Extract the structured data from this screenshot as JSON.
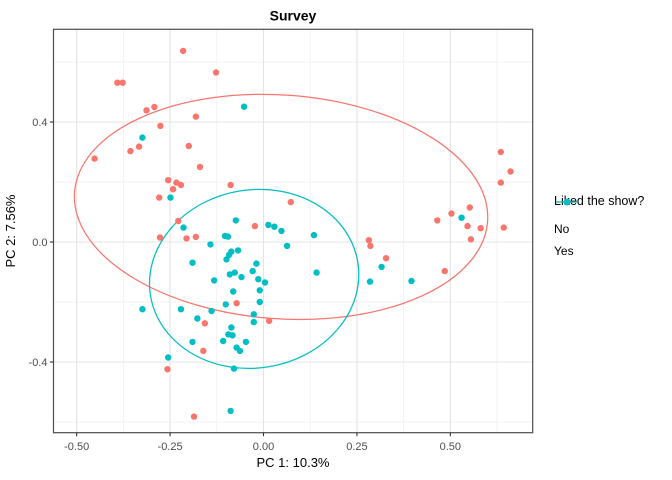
{
  "title": "Survey",
  "axes": {
    "x": {
      "label": "PC 1: 10.3%",
      "ticks": [
        {
          "value": -0.5,
          "label": "-0.50"
        },
        {
          "value": -0.25,
          "label": "-0.25"
        },
        {
          "value": 0.0,
          "label": "0.00"
        },
        {
          "value": 0.25,
          "label": "0.25"
        },
        {
          "value": 0.5,
          "label": "0.50"
        }
      ],
      "minor": [
        -0.375,
        -0.125,
        0.125,
        0.375,
        0.625
      ],
      "range": [
        -0.562,
        0.721
      ]
    },
    "y": {
      "label": "PC 2: 7.56%",
      "ticks": [
        {
          "value": 0.4,
          "label": "0.4"
        },
        {
          "value": 0.0,
          "label": "0.0"
        },
        {
          "value": -0.4,
          "label": "-0.4"
        }
      ],
      "minor": [
        -0.6,
        -0.2,
        0.2,
        0.6
      ],
      "range": [
        -0.634,
        0.711
      ]
    }
  },
  "legend": {
    "title": "Liked the show?",
    "entries": [
      {
        "label": "No",
        "color": "#F8766D"
      },
      {
        "label": "Yes",
        "color": "#00BFC4"
      }
    ]
  },
  "chart_data": {
    "type": "scatter",
    "xlabel": "PC 1: 10.3%",
    "ylabel": "PC 2: 7.56%",
    "title": "Survey",
    "grid": true,
    "legend_position": "right",
    "series": [
      {
        "name": "No",
        "color": "#F8766D",
        "points": [
          [
            -0.215,
            0.637
          ],
          [
            -0.391,
            0.531
          ],
          [
            -0.377,
            0.531
          ],
          [
            -0.313,
            0.439
          ],
          [
            -0.292,
            0.45
          ],
          [
            -0.276,
            0.387
          ],
          [
            -0.181,
            0.418
          ],
          [
            -0.333,
            0.318
          ],
          [
            -0.356,
            0.303
          ],
          [
            -0.452,
            0.278
          ],
          [
            -0.2,
            0.32
          ],
          [
            -0.127,
            0.565
          ],
          [
            0.635,
            0.3
          ],
          [
            -0.17,
            0.25
          ],
          [
            -0.255,
            0.206
          ],
          [
            -0.233,
            0.198
          ],
          [
            -0.221,
            0.19
          ],
          [
            -0.242,
            0.176
          ],
          [
            -0.279,
            0.148
          ],
          [
            -0.228,
            0.07
          ],
          [
            -0.277,
            0.015
          ],
          [
            -0.206,
            0.012
          ],
          [
            -0.181,
            0.017
          ],
          [
            -0.088,
            0.19
          ],
          [
            0.073,
            0.133
          ],
          [
            -0.023,
            0.053
          ],
          [
            0.282,
            0.006
          ],
          [
            0.286,
            -0.013
          ],
          [
            0.661,
            0.235
          ],
          [
            0.635,
            0.198
          ],
          [
            0.552,
            0.115
          ],
          [
            0.503,
            0.095
          ],
          [
            0.465,
            0.072
          ],
          [
            0.546,
            0.053
          ],
          [
            0.581,
            0.046
          ],
          [
            0.555,
            0.009
          ],
          [
            0.643,
            0.048
          ],
          [
            0.328,
            -0.054
          ],
          [
            0.485,
            -0.097
          ],
          [
            -0.157,
            -0.271
          ],
          [
            -0.161,
            -0.363
          ],
          [
            -0.257,
            -0.424
          ],
          [
            -0.186,
            -0.582
          ],
          [
            -0.072,
            -0.204
          ],
          [
            0.015,
            -0.263
          ]
        ]
      },
      {
        "name": "Yes",
        "color": "#00BFC4",
        "points": [
          [
            -0.324,
            0.348
          ],
          [
            -0.052,
            0.451
          ],
          [
            -0.249,
            0.148
          ],
          [
            -0.214,
            0.048
          ],
          [
            -0.142,
            -0.008
          ],
          [
            -0.19,
            -0.069
          ],
          [
            -0.074,
            0.072
          ],
          [
            0.013,
            0.057
          ],
          [
            0.029,
            0.051
          ],
          [
            0.048,
            0.037
          ],
          [
            0.135,
            0.023
          ],
          [
            -0.103,
            0.02
          ],
          [
            -0.095,
            0.018
          ],
          [
            0.063,
            -0.013
          ],
          [
            -0.086,
            -0.032
          ],
          [
            -0.068,
            -0.028
          ],
          [
            -0.092,
            -0.043
          ],
          [
            -0.099,
            -0.058
          ],
          [
            -0.019,
            -0.072
          ],
          [
            -0.029,
            -0.097
          ],
          [
            -0.077,
            -0.102
          ],
          [
            -0.059,
            -0.117
          ],
          [
            -0.09,
            -0.108
          ],
          [
            -0.014,
            -0.124
          ],
          [
            0.004,
            -0.135
          ],
          [
            0.142,
            -0.102
          ],
          [
            -0.132,
            -0.128
          ],
          [
            -0.081,
            -0.165
          ],
          [
            -0.01,
            -0.161
          ],
          [
            0.285,
            -0.132
          ],
          [
            0.53,
            0.081
          ],
          [
            0.316,
            -0.083
          ],
          [
            0.396,
            -0.13
          ],
          [
            -0.324,
            -0.224
          ],
          [
            -0.221,
            -0.224
          ],
          [
            -0.177,
            -0.255
          ],
          [
            -0.19,
            -0.333
          ],
          [
            -0.255,
            -0.385
          ],
          [
            -0.101,
            -0.208
          ],
          [
            -0.01,
            -0.2
          ],
          [
            -0.139,
            -0.23
          ],
          [
            -0.026,
            -0.241
          ],
          [
            -0.026,
            -0.267
          ],
          [
            -0.086,
            -0.285
          ],
          [
            -0.094,
            -0.308
          ],
          [
            -0.083,
            -0.311
          ],
          [
            -0.108,
            -0.33
          ],
          [
            -0.047,
            -0.333
          ],
          [
            -0.072,
            -0.352
          ],
          [
            -0.063,
            -0.363
          ],
          [
            -0.079,
            -0.422
          ],
          [
            -0.088,
            -0.563
          ]
        ]
      }
    ],
    "ellipses": [
      {
        "series": "No",
        "cx": 0.047,
        "cy": 0.117,
        "rx": 0.554,
        "ry": 0.373,
        "rotation_deg": 4
      },
      {
        "series": "Yes",
        "cx": -0.025,
        "cy": -0.123,
        "rx": 0.281,
        "ry": 0.297,
        "rotation_deg": -9
      }
    ]
  },
  "colors": {
    "no": "#F8766D",
    "yes": "#00BFC4",
    "panel_border": "#4D4D4D",
    "grid_major": "#E4E4E4",
    "grid_minor": "#EFEFEF",
    "tick_label": "#4D4D4D"
  }
}
